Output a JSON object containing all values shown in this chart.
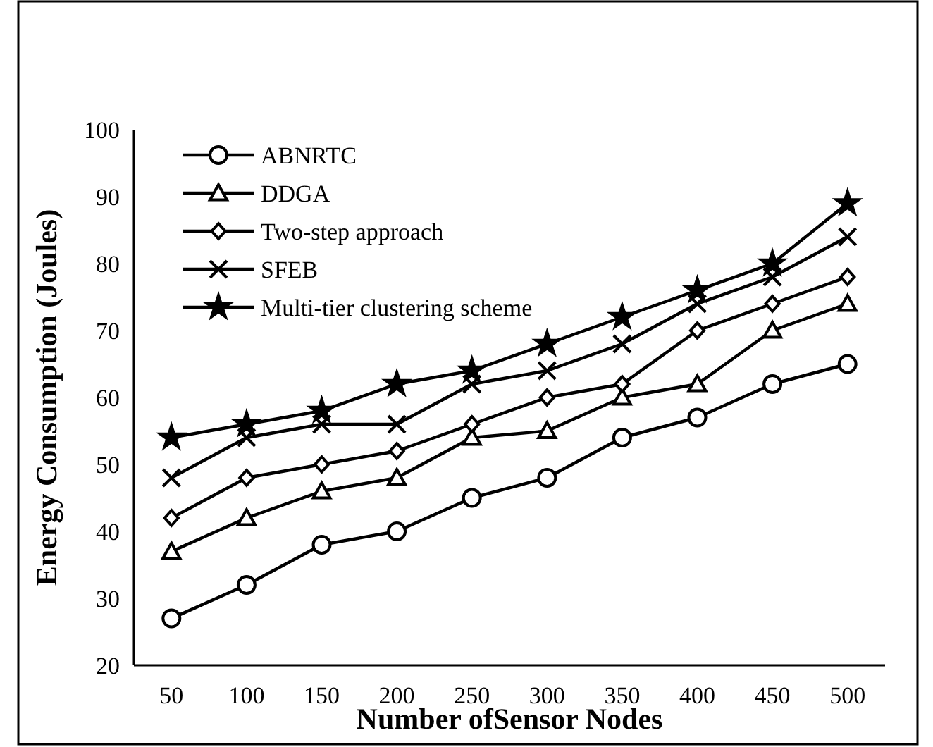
{
  "chart_data": {
    "type": "line",
    "xlabel": "Number ofSensor Nodes",
    "ylabel": "Energy Consumption (Joules)",
    "categories": [
      "50",
      "100",
      "150",
      "200",
      "250",
      "300",
      "350",
      "400",
      "450",
      "500"
    ],
    "ylim": [
      20,
      100
    ],
    "yticks": [
      20,
      30,
      40,
      50,
      60,
      70,
      80,
      90,
      100
    ],
    "grid": false,
    "legend": "top left",
    "line_style": "solid",
    "series": [
      {
        "name": "ABNRTC",
        "color": "#000000",
        "marker": "circle",
        "values": [
          27,
          32,
          38,
          40,
          45,
          48,
          54,
          57,
          62,
          65
        ]
      },
      {
        "name": "DDGA",
        "color": "#000000",
        "marker": "triangle",
        "values": [
          37,
          42,
          46,
          48,
          54,
          55,
          60,
          62,
          70,
          74
        ]
      },
      {
        "name": "Two-step approach",
        "color": "#000000",
        "marker": "diamond",
        "values": [
          42,
          48,
          50,
          52,
          56,
          60,
          62,
          70,
          74,
          78
        ]
      },
      {
        "name": "SFEB",
        "color": "#000000",
        "marker": "cross",
        "values": [
          48,
          54,
          56,
          56,
          62,
          64,
          68,
          74,
          78,
          84
        ]
      },
      {
        "name": "Multi-tier clustering scheme",
        "color": "#000000",
        "marker": "star",
        "values": [
          54,
          56,
          58,
          62,
          64,
          68,
          72,
          76,
          80,
          89
        ]
      }
    ]
  }
}
